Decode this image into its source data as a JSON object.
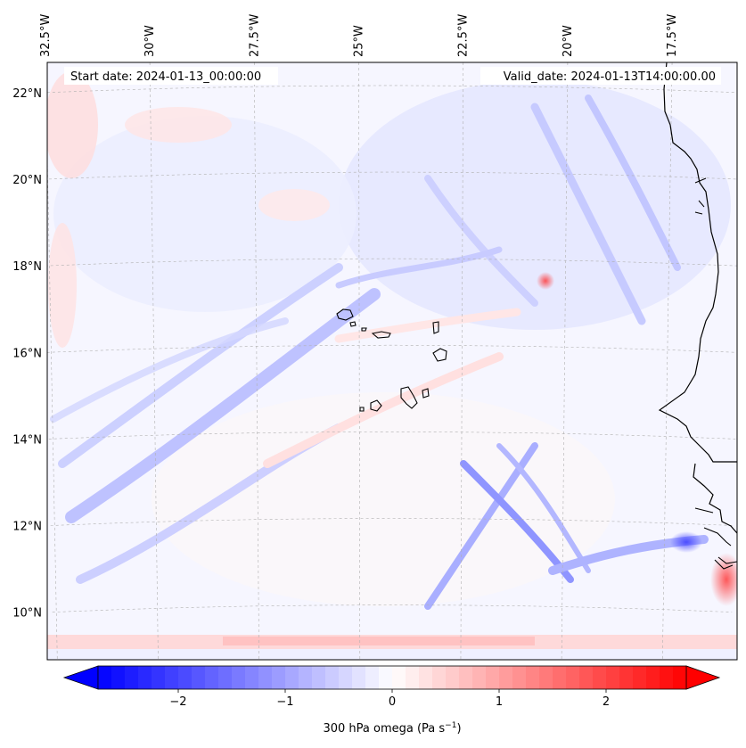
{
  "map": {
    "start_date_text": "Start date: 2024-01-13_00:00:00",
    "valid_date_text": "Valid_date: 2024-01-13T14:00:00.00",
    "lon_labels": [
      {
        "lon": -32.5,
        "text": "32.5°W"
      },
      {
        "lon": -30.0,
        "text": "30°W"
      },
      {
        "lon": -27.5,
        "text": "27.5°W"
      },
      {
        "lon": -25.0,
        "text": "25°W"
      },
      {
        "lon": -22.5,
        "text": "22.5°W"
      },
      {
        "lon": -20.0,
        "text": "20°W"
      },
      {
        "lon": -17.5,
        "text": "17.5°W"
      }
    ],
    "lat_labels": [
      {
        "lat": 22,
        "text": "22°N"
      },
      {
        "lat": 20,
        "text": "20°N"
      },
      {
        "lat": 18,
        "text": "18°N"
      },
      {
        "lat": 16,
        "text": "16°N"
      },
      {
        "lat": 14,
        "text": "14°N"
      },
      {
        "lat": 12,
        "text": "12°N"
      },
      {
        "lat": 10,
        "text": "10°N"
      }
    ],
    "lon_range": [
      -32.6,
      -15.8
    ],
    "lat_range": [
      8.9,
      22.7
    ],
    "colors": {
      "negative_max": "#0000ff",
      "zero": "#ffffff",
      "positive_max": "#ff0000",
      "coastline": "#000000",
      "gridline": "#b0b0b0"
    }
  },
  "colorbar": {
    "label": "300 hPa omega (Pa s",
    "label_exponent": "−1",
    "label_close": ")",
    "vmin": -2.75,
    "vmax": 2.75,
    "ticks": [
      {
        "value": -2,
        "text": "−2"
      },
      {
        "value": -1,
        "text": "−1"
      },
      {
        "value": 0,
        "text": "0"
      },
      {
        "value": 1,
        "text": "1"
      },
      {
        "value": 2,
        "text": "2"
      }
    ],
    "extend": "both"
  }
}
